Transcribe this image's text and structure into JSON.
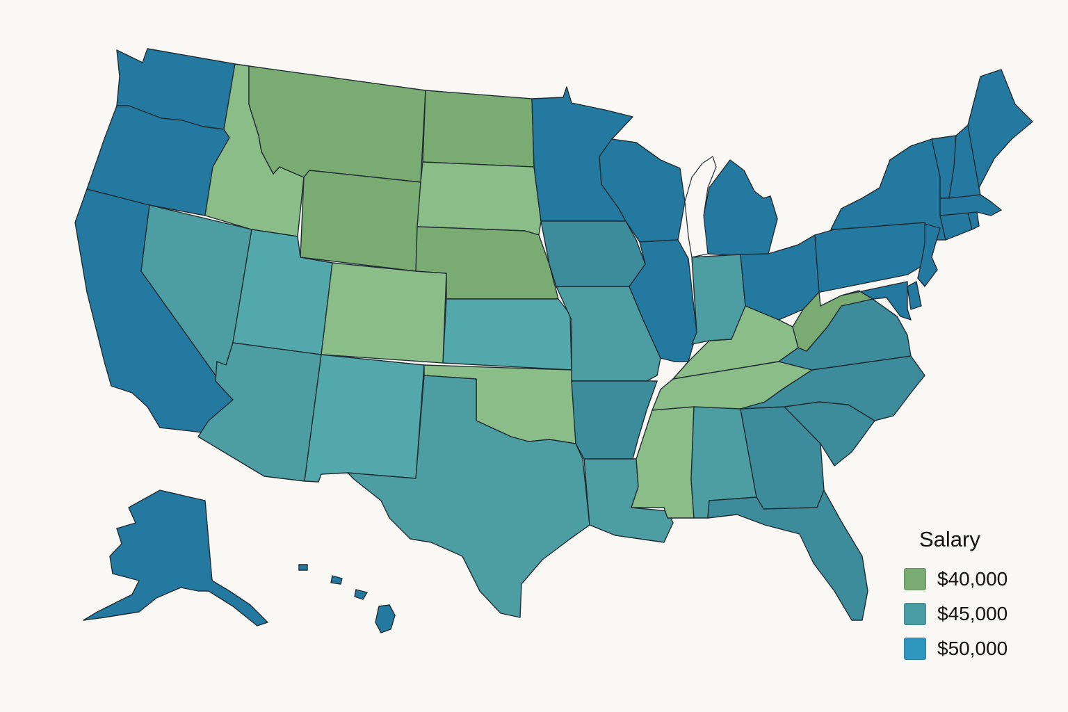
{
  "legend": {
    "title": "Salary",
    "items": [
      {
        "label": "$40,000",
        "color": "#7aab72"
      },
      {
        "label": "$45,000",
        "color": "#4a9ea3"
      },
      {
        "label": "$50,000",
        "color": "#2f96c0"
      }
    ]
  },
  "palette": {
    "green_dark": "#79ab72",
    "green_light": "#8bbd88",
    "teal": "#4c9ea3",
    "teal_light": "#52a8ab",
    "teal_dark": "#3d8c9c",
    "blue": "#2479a0",
    "stroke": "#1f2d33",
    "background": "#faf8f4"
  },
  "states": {
    "WA": "blue",
    "OR": "blue",
    "CA": "blue",
    "NV": "teal",
    "ID": "green_light",
    "MT": "green_dark",
    "WY": "green_dark",
    "UT": "teal_light",
    "AZ": "teal",
    "CO": "green_light",
    "NM": "teal_light",
    "ND": "green_dark",
    "SD": "green_light",
    "NE": "green_dark",
    "KS": "teal_light",
    "OK": "green_light",
    "TX": "teal",
    "MN": "blue",
    "IA": "teal_dark",
    "MO": "teal",
    "AR": "teal_dark",
    "LA": "teal",
    "WI": "blue",
    "IL": "blue",
    "MI": "blue",
    "IN": "teal",
    "OH": "blue",
    "KY": "green_light",
    "TN": "green_light",
    "MS": "green_light",
    "AL": "teal",
    "GA": "teal_dark",
    "FL": "teal_dark",
    "SC": "teal_dark",
    "NC": "teal_dark",
    "VA": "teal_dark",
    "WV": "green_dark",
    "PA": "blue",
    "NY": "blue",
    "NJ": "blue",
    "DE": "blue",
    "MD": "blue",
    "CT": "blue",
    "RI": "blue",
    "MA": "blue",
    "VT": "blue",
    "NH": "blue",
    "ME": "blue",
    "AK": "blue",
    "HI": "blue"
  }
}
